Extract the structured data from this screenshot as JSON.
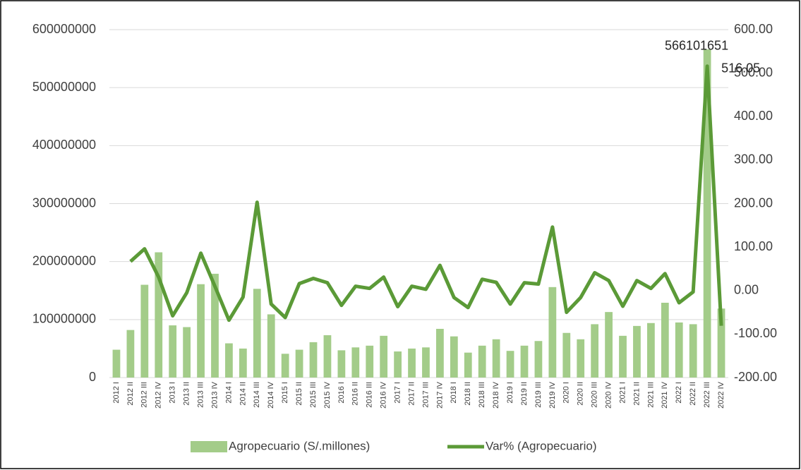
{
  "chart_data": {
    "type": "combo",
    "categories": [
      "2012 I",
      "2012 II",
      "2012 III",
      "2012 IV",
      "2013 I",
      "2013 II",
      "2013 III",
      "2013 IV",
      "2014 I",
      "2014 II",
      "2014 III",
      "2014 IV",
      "2015 I",
      "2015 II",
      "2015 III",
      "2015 IV",
      "2016 I",
      "2016 II",
      "2016 III",
      "2016 IV",
      "2017 I",
      "2017 II",
      "2017 III",
      "2017 IV",
      "2018 I",
      "2018 II",
      "2018 III",
      "2018 IV",
      "2019 I",
      "2019 II",
      "2019 III",
      "2019 IV",
      "2020 I",
      "2020 II",
      "2020 III",
      "2020 IV",
      "2021 I",
      "2021 II",
      "2021 III",
      "2021 IV",
      "2022 I",
      "2022 II",
      "2022 III",
      "2022 IV"
    ],
    "series": [
      {
        "name": "Agropecuario (S/.millones)",
        "type": "bar",
        "color": "#a3cc89",
        "values": [
          48000000,
          82000000,
          160000000,
          216000000,
          90000000,
          87000000,
          161000000,
          179000000,
          59000000,
          50000000,
          153000000,
          109000000,
          41000000,
          48000000,
          61000000,
          73000000,
          47000000,
          52000000,
          55000000,
          72000000,
          45000000,
          50000000,
          52000000,
          84000000,
          71000000,
          43000000,
          55000000,
          66000000,
          46000000,
          55000000,
          63000000,
          156000000,
          77000000,
          66000000,
          92000000,
          113000000,
          72000000,
          89000000,
          94000000,
          129000000,
          95000000,
          92000000,
          566101651,
          119000000
        ],
        "value_labels": [
          null,
          null,
          null,
          null,
          null,
          null,
          null,
          null,
          null,
          null,
          null,
          null,
          null,
          null,
          null,
          null,
          null,
          null,
          null,
          null,
          null,
          null,
          null,
          null,
          null,
          null,
          null,
          null,
          null,
          null,
          null,
          null,
          null,
          null,
          null,
          null,
          null,
          null,
          null,
          null,
          null,
          null,
          "566101651",
          null
        ]
      },
      {
        "name": "Var% (Agropecuario)",
        "type": "line",
        "axis": "y2",
        "color": "#5b9a37",
        "values": [
          null,
          67,
          96,
          31,
          -58,
          -5,
          86,
          10,
          -68,
          -15,
          203,
          -31,
          -62,
          16,
          28,
          18,
          -34,
          10,
          5,
          31,
          -37,
          10,
          3,
          58,
          -16,
          -39,
          26,
          19,
          -31,
          18,
          15,
          146,
          -50,
          -16,
          41,
          23,
          -36,
          23,
          5,
          39,
          -28,
          -3,
          516.05,
          -81
        ],
        "value_labels": [
          null,
          null,
          null,
          null,
          null,
          null,
          null,
          null,
          null,
          null,
          null,
          null,
          null,
          null,
          null,
          null,
          null,
          null,
          null,
          null,
          null,
          null,
          null,
          null,
          null,
          null,
          null,
          null,
          null,
          null,
          null,
          null,
          null,
          null,
          null,
          null,
          null,
          null,
          null,
          null,
          null,
          null,
          "516.05",
          null
        ]
      }
    ],
    "ylim": [
      0,
      600000000
    ],
    "yticks": [
      0,
      100000000,
      200000000,
      300000000,
      400000000,
      500000000,
      600000000
    ],
    "y2lim": [
      -200,
      600
    ],
    "y2ticks": [
      {
        "value": -200,
        "label": "-200.00"
      },
      {
        "value": -100,
        "label": "-100.00"
      },
      {
        "value": 0,
        "label": "0.00"
      },
      {
        "value": 100,
        "label": "100.00"
      },
      {
        "value": 200,
        "label": "200.00"
      },
      {
        "value": 300,
        "label": "300.00"
      },
      {
        "value": 400,
        "label": "400.00"
      },
      {
        "value": 500,
        "label": "500.00"
      },
      {
        "value": 600,
        "label": "600.00"
      }
    ],
    "grid": true,
    "legend": "bottom"
  }
}
